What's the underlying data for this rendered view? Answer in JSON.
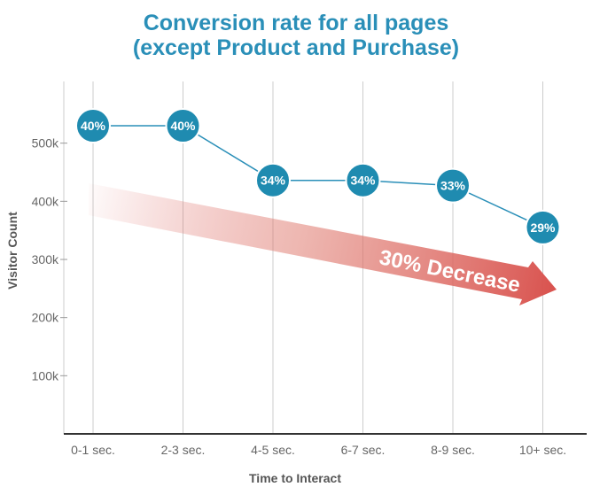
{
  "chart_data": {
    "type": "line",
    "title_line1": "Conversion rate for all pages",
    "title_line2": "(except Product and Purchase)",
    "xlabel": "Time to Interact",
    "ylabel": "Visitor Count",
    "categories": [
      "0-1 sec.",
      "2-3 sec.",
      "4-5 sec.",
      "6-7 sec.",
      "8-9 sec.",
      "10+ sec."
    ],
    "values": [
      530000,
      530000,
      436000,
      436000,
      427000,
      355000
    ],
    "point_labels": [
      "40%",
      "40%",
      "34%",
      "34%",
      "33%",
      "29%"
    ],
    "yticks": [
      100000,
      200000,
      300000,
      400000,
      500000
    ],
    "ytick_labels": [
      "100k",
      "200k",
      "300k",
      "400k",
      "500k"
    ],
    "ylim": [
      0,
      600000
    ],
    "grid": "vertical",
    "annotation": "30% Decrease",
    "colors": {
      "title": "#2a8fb8",
      "marker": "#1f8bb0",
      "line": "#2a8fb8",
      "arrow": "#d9534f",
      "grid": "#cccccc"
    }
  }
}
